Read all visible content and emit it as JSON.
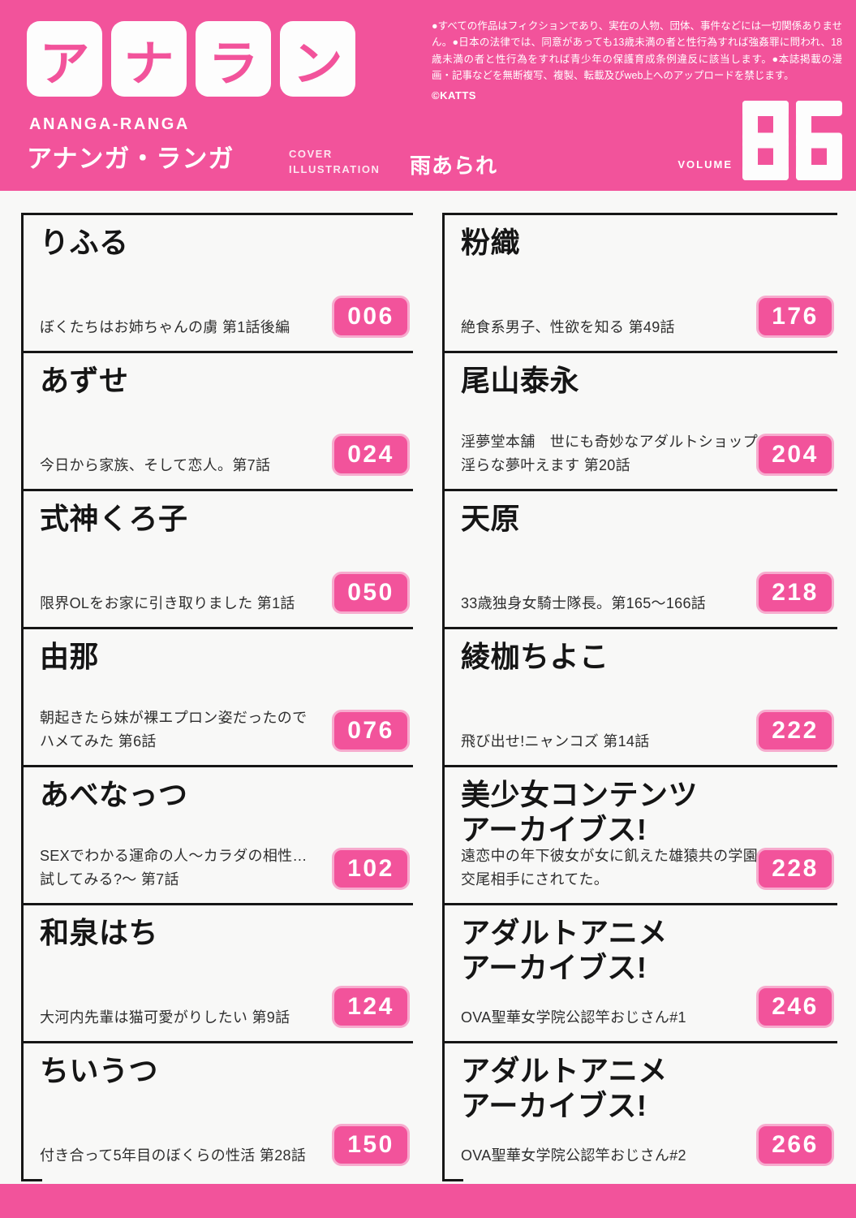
{
  "colors": {
    "pink": "#f2539b",
    "ink": "#161616"
  },
  "header": {
    "logo_tiles": [
      "ア",
      "ナ",
      "ラ",
      "ン"
    ],
    "logo_romaji": "ANANGA-RANGA",
    "logo_kana": "アナンガ・ランガ",
    "cover_label": "COVER\nILLUSTRATION",
    "cover_artist": "雨あられ",
    "disclaimer": "●すべての作品はフィクションであり、実在の人物、団体、事件などには一切関係ありません。●日本の法律では、同意があっても13歳未満の者と性行為すれば強姦罪に問われ、18歳未満の者と性行為をすれば青少年の保護育成条例違反に該当します。●本誌掲載の漫画・記事などを無断複写、複製、転載及びweb上へのアップロードを禁じます。",
    "copyright": "©KATTS",
    "volume_label": "VOLUME",
    "volume_number": "86"
  },
  "toc": {
    "entries": [
      {
        "author": "りふる",
        "title": "ぼくたちはお姉ちゃんの虜 第1話後編",
        "page": "006"
      },
      {
        "author": "粉織",
        "title": "絶食系男子、性欲を知る 第49話",
        "page": "176"
      },
      {
        "author": "あずせ",
        "title": "今日から家族、そして恋人。第7話",
        "page": "024"
      },
      {
        "author": "尾山泰永",
        "title": "淫夢堂本舗　世にも奇妙なアダルトショップ\n淫らな夢叶えます 第20話",
        "page": "204"
      },
      {
        "author": "式神くろ子",
        "title": "限界OLをお家に引き取りました 第1話",
        "page": "050"
      },
      {
        "author": "天原",
        "title": "33歳独身女騎士隊長。第165〜166話",
        "page": "218"
      },
      {
        "author": "由那",
        "title": "朝起きたら妹が裸エプロン姿だったので\nハメてみた 第6話",
        "page": "076"
      },
      {
        "author": "綾枷ちよこ",
        "title": "飛び出せ!ニャンコズ 第14話",
        "page": "222"
      },
      {
        "author": "あべなっつ",
        "title": "SEXでわかる運命の人〜カラダの相性…\n試してみる?〜 第7話",
        "page": "102"
      },
      {
        "author": "美少女コンテンツ\nアーカイブス!",
        "title": "遠恋中の年下彼女が女に飢えた雄猿共の学園で\n交尾相手にされてた。",
        "page": "228"
      },
      {
        "author": "和泉はち",
        "title": "大河内先輩は猫可愛がりしたい 第9話",
        "page": "124"
      },
      {
        "author": "アダルトアニメ\nアーカイブス!",
        "title": "OVA聖華女学院公認竿おじさん#1",
        "page": "246"
      },
      {
        "author": "ちいうつ",
        "title": "付き合って5年目のぼくらの性活 第28話",
        "page": "150"
      },
      {
        "author": "アダルトアニメ\nアーカイブス!",
        "title": "OVA聖華女学院公認竿おじさん#2",
        "page": "266"
      }
    ]
  }
}
